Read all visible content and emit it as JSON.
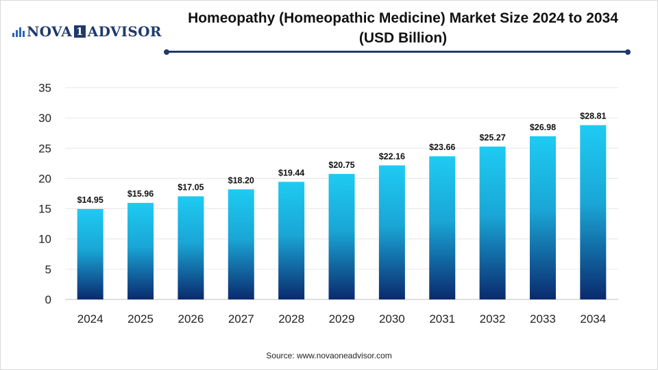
{
  "logo": {
    "text_left": "NOVA",
    "text_one": "1",
    "text_right": "ADVISOR"
  },
  "title": "Homeopathy (Homeopathic Medicine) Market Size 2024 to 2034 (USD Billion)",
  "source": "Source: www.novaoneadvisor.com",
  "colors": {
    "bar_top": "#1ecbf2",
    "bar_bottom": "#0a2a6e",
    "accent": "#1f3a6b",
    "grid": "#e6e6e6"
  },
  "chart_data": {
    "type": "bar",
    "categories": [
      "2024",
      "2025",
      "2026",
      "2027",
      "2028",
      "2029",
      "2030",
      "2031",
      "2032",
      "2033",
      "2034"
    ],
    "values": [
      14.95,
      15.96,
      17.05,
      18.2,
      19.44,
      20.75,
      22.16,
      23.66,
      25.27,
      26.98,
      28.81
    ],
    "data_labels": [
      "$14.95",
      "$15.96",
      "$17.05",
      "$18.20",
      "$19.44",
      "$20.75",
      "$22.16",
      "$23.66",
      "$25.27",
      "$26.98",
      "$28.81"
    ],
    "ylim": [
      0,
      35
    ],
    "yticks": [
      0,
      5,
      10,
      15,
      20,
      25,
      30,
      35
    ],
    "xlabel": "",
    "ylabel": "",
    "grid": true,
    "legend": "none"
  }
}
